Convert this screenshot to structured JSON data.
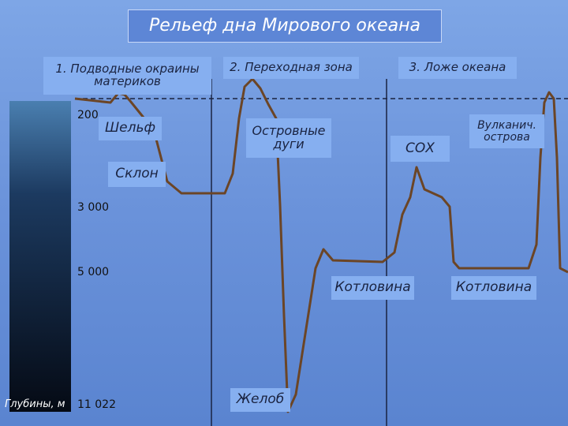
{
  "title": "Рельеф дна Мирового океана",
  "zones": [
    "1. Подводные окраины материков",
    "2. Переходная зона",
    "3. Ложе океана"
  ],
  "features": [
    "Шельф",
    "Склон",
    "Островные дуги",
    "СОХ",
    "Вулканич. острова",
    "Котловина",
    "Котловина",
    "Желоб"
  ],
  "depths": [
    "200",
    "3 000",
    "5 000",
    "11 022"
  ],
  "depth_axis_label": "Глубины, м"
}
